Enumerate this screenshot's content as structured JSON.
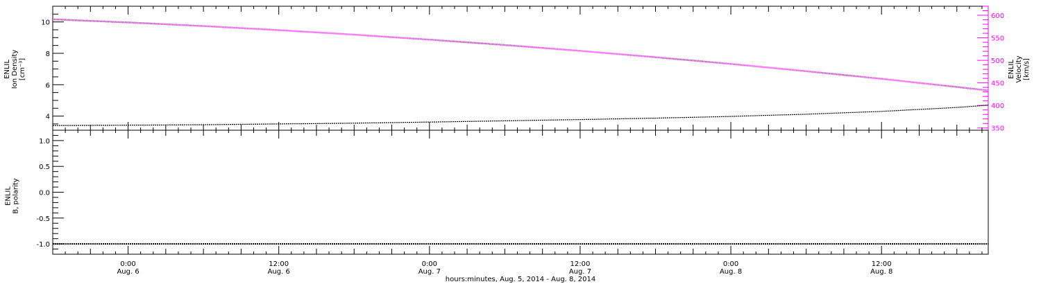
{
  "colors": {
    "axis": "#000000",
    "density": "#000000",
    "velocity": "#ff00ff",
    "polarity": "#000000",
    "background": "#ffffff"
  },
  "chart_data": [
    {
      "type": "line",
      "panel": "top",
      "ylabel_left": [
        "ENLIL",
        "Ion Density",
        "[cm⁻³]"
      ],
      "ylabel_right": [
        "ENLIL",
        "Velocity",
        "[km/s]"
      ],
      "ylim_left": [
        3.1,
        11.0
      ],
      "ylim_right": [
        345,
        620
      ],
      "yticks_left": [
        4,
        6,
        8,
        10
      ],
      "yticks_right": [
        350,
        400,
        450,
        500,
        550,
        600
      ],
      "series": [
        {
          "axis": "left",
          "color": "#000000",
          "x": [
            "Aug 5 18:00",
            "Aug 6 00:00",
            "Aug 6 06:00",
            "Aug 6 12:00",
            "Aug 6 18:00",
            "Aug 7 00:00",
            "Aug 7 06:00",
            "Aug 7 12:00",
            "Aug 7 18:00",
            "Aug 8 00:00",
            "Aug 8 06:00",
            "Aug 8 12:00",
            "Aug 8 18:00",
            "Aug 8 20:30"
          ],
          "y": [
            3.4,
            3.42,
            3.45,
            3.5,
            3.55,
            3.62,
            3.7,
            3.78,
            3.87,
            3.98,
            4.12,
            4.3,
            4.55,
            4.7
          ]
        },
        {
          "axis": "right",
          "color": "#ff00ff",
          "x": [
            "Aug 5 18:00",
            "Aug 6 00:00",
            "Aug 6 06:00",
            "Aug 6 12:00",
            "Aug 6 18:00",
            "Aug 7 00:00",
            "Aug 7 06:00",
            "Aug 7 12:00",
            "Aug 7 18:00",
            "Aug 8 00:00",
            "Aug 8 06:00",
            "Aug 8 12:00",
            "Aug 8 18:00",
            "Aug 8 20:30"
          ],
          "y": [
            591,
            584,
            576,
            567,
            557,
            546,
            534,
            521,
            507,
            492,
            476,
            459,
            441,
            433
          ]
        }
      ]
    },
    {
      "type": "line",
      "panel": "bottom",
      "ylabel_left": [
        "ENLIL",
        "B, polarity"
      ],
      "ylim": [
        -1.2,
        1.2
      ],
      "yticks": [
        -1.0,
        -0.5,
        0.0,
        0.5,
        1.0
      ],
      "ytick_labels": [
        "-1.0",
        "-0.5",
        "0.0",
        "0.5",
        "1.0"
      ],
      "series": [
        {
          "color": "#000000",
          "x": [
            "Aug 5 18:00",
            "Aug 8 20:30"
          ],
          "y": [
            -1.0,
            -1.0
          ]
        }
      ]
    }
  ],
  "x_axis": {
    "ticks": [
      {
        "time": "0:00",
        "date": "Aug. 6"
      },
      {
        "time": "12:00",
        "date": "Aug. 6"
      },
      {
        "time": "0:00",
        "date": "Aug. 7"
      },
      {
        "time": "12:00",
        "date": "Aug. 7"
      },
      {
        "time": "0:00",
        "date": "Aug. 8"
      },
      {
        "time": "12:00",
        "date": "Aug. 8"
      }
    ],
    "title": "hours:minutes, Aug.  5, 2014 - Aug.  8, 2014"
  }
}
